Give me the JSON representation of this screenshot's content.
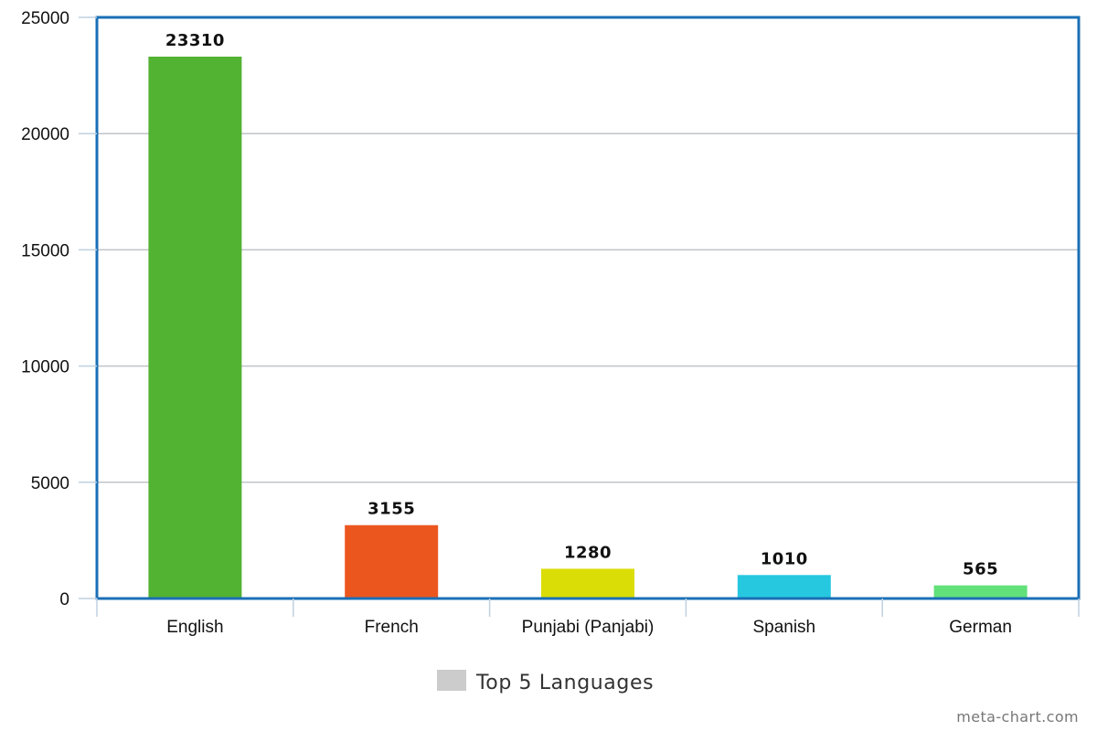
{
  "chart_data": {
    "type": "bar",
    "categories": [
      "English",
      "French",
      "Punjabi (Panjabi)",
      "Spanish",
      "German"
    ],
    "series": [
      {
        "name": "Top 5 Languages",
        "values": [
          23310,
          3155,
          1280,
          1010,
          565
        ]
      }
    ],
    "data_labels": [
      "23310",
      "3155",
      "1280",
      "1010",
      "565"
    ],
    "bar_colors": [
      "#52b232",
      "#eb561f",
      "#dbdd06",
      "#26c8e0",
      "#62e07a"
    ],
    "ylim": [
      0,
      25000
    ],
    "yticks": [
      0,
      5000,
      10000,
      15000,
      20000,
      25000
    ],
    "ytick_labels": [
      "0",
      "5000",
      "10000",
      "15000",
      "20000",
      "25000"
    ],
    "grid": true,
    "legend": {
      "position": "bottom",
      "label": "Top 5 Languages",
      "swatch_color": "#cccccc"
    },
    "plot_border_color": "#1a6fb5",
    "credit": "meta-chart.com"
  }
}
